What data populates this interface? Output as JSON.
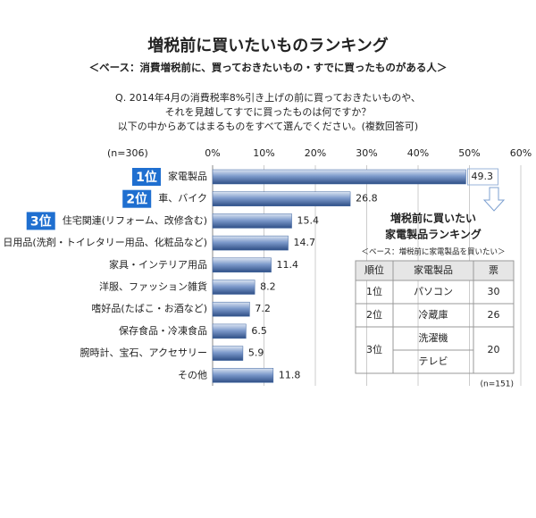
{
  "chart_data": {
    "type": "bar",
    "orientation": "horizontal",
    "title": "増税前に買いたいものランキング",
    "subtitle": "＜ベース：消費増税前に、買っておきたいもの・すでに買ったものがある人＞",
    "question": [
      "Q. 2014年4月の消費税率8%引き上げの前に買っておきたいものや、",
      "それを見越してすでに買ったものは何ですか？",
      "以下の中からあてはまるものをすべて選んでください。(複数回答可)"
    ],
    "n_label": "(n=306)",
    "categories": [
      "家電製品",
      "車、バイク",
      "住宅関連(リフォーム、改修含む)",
      "日用品(洗剤・トイレタリー用品、化粧品など)",
      "家具・インテリア用品",
      "洋服、ファッション雑貨",
      "嗜好品(たばこ・お酒など)",
      "保存食品・冷凍食品",
      "腕時計、宝石、アクセサリー",
      "その他"
    ],
    "values": [
      49.3,
      26.8,
      15.4,
      14.7,
      11.4,
      8.2,
      7.2,
      6.5,
      5.9,
      11.8
    ],
    "rank_badges": [
      "1位",
      "2位",
      "3位"
    ],
    "color": "#3f65a0",
    "badge_color": "#1f6fd0",
    "xlim": [
      0,
      60
    ],
    "xticks": [
      {
        "value": 0,
        "label": "0%"
      },
      {
        "value": 10,
        "label": "10%"
      },
      {
        "value": 20,
        "label": "20%"
      },
      {
        "value": 30,
        "label": "30%"
      },
      {
        "value": 40,
        "label": "40%"
      },
      {
        "value": 50,
        "label": "50%"
      },
      {
        "value": 60,
        "label": "60%"
      }
    ],
    "grid": true
  },
  "inset_table": {
    "title": [
      "増税前に買いたい",
      "家電製品ランキング"
    ],
    "subtitle": "＜ベース：増税前に家電製品を買いたい＞",
    "header": [
      "順位",
      "家電製品",
      "票"
    ],
    "rows": [
      {
        "rank": "1位",
        "items": [
          "パソコン"
        ],
        "votes": 30
      },
      {
        "rank": "2位",
        "items": [
          "冷蔵庫"
        ],
        "votes": 26
      },
      {
        "rank": "3位",
        "items": [
          "洗濯機",
          "テレビ"
        ],
        "votes": 20
      }
    ],
    "n_label": "(n=151)"
  }
}
